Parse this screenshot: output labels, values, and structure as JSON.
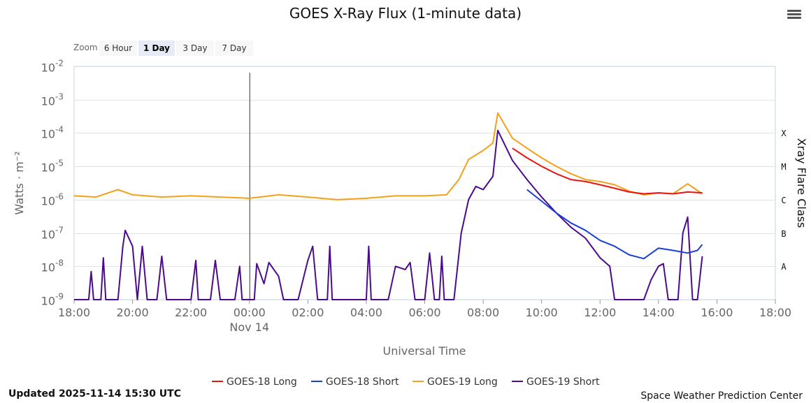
{
  "header": {
    "menu_icon": "hamburger-menu-icon"
  },
  "zoom": {
    "label": "Zoom",
    "options": [
      "6 Hour",
      "1 Day",
      "3 Day",
      "7 Day"
    ],
    "selected": "1 Day"
  },
  "footer": {
    "updated": "Updated 2025-11-14 15:30 UTC",
    "credit": "Space Weather Prediction Center"
  },
  "chart_data": {
    "type": "line",
    "title": "GOES X-Ray Flux (1-minute data)",
    "xlabel": "Universal Time",
    "ylabel": "Watts · m⁻²",
    "y2label": "Xray Flare Class",
    "yscale": "log",
    "ylim": [
      1e-09,
      0.01
    ],
    "xlim": [
      "2025-11-13 18:00",
      "2025-11-14 18:00"
    ],
    "grid": true,
    "legend_position": "bottom",
    "x_ticks": [
      "18:00",
      "20:00",
      "22:00",
      "00:00",
      "02:00",
      "04:00",
      "06:00",
      "08:00",
      "10:00",
      "12:00",
      "14:00",
      "16:00",
      "18:00"
    ],
    "date_label": {
      "at": "00:00",
      "text": "Nov 14"
    },
    "y_ticks": [
      {
        "base": "10",
        "exp": "-9"
      },
      {
        "base": "10",
        "exp": "-8"
      },
      {
        "base": "10",
        "exp": "-7"
      },
      {
        "base": "10",
        "exp": "-6"
      },
      {
        "base": "10",
        "exp": "-5"
      },
      {
        "base": "10",
        "exp": "-4"
      },
      {
        "base": "10",
        "exp": "-3"
      },
      {
        "base": "10",
        "exp": "-2"
      }
    ],
    "flare_classes": [
      {
        "label": "X",
        "at": 0.0001
      },
      {
        "label": "M",
        "at": 1e-05
      },
      {
        "label": "C",
        "at": 1e-06
      },
      {
        "label": "B",
        "at": 1e-07
      },
      {
        "label": "A",
        "at": 1e-08
      }
    ],
    "series": [
      {
        "name": "GOES-18 Long",
        "color": "#e8150f",
        "points": [
          [
            "2025-11-14 09:00",
            3.5e-05
          ],
          [
            "2025-11-14 09:30",
            1.8e-05
          ],
          [
            "2025-11-14 10:00",
            1e-05
          ],
          [
            "2025-11-14 10:30",
            6e-06
          ],
          [
            "2025-11-14 11:00",
            4e-06
          ],
          [
            "2025-11-14 11:30",
            3.5e-06
          ],
          [
            "2025-11-14 12:00",
            2.8e-06
          ],
          [
            "2025-11-14 12:30",
            2.2e-06
          ],
          [
            "2025-11-14 13:00",
            1.7e-06
          ],
          [
            "2025-11-14 13:30",
            1.5e-06
          ],
          [
            "2025-11-14 14:00",
            1.6e-06
          ],
          [
            "2025-11-14 14:30",
            1.5e-06
          ],
          [
            "2025-11-14 15:00",
            1.7e-06
          ],
          [
            "2025-11-14 15:30",
            1.6e-06
          ]
        ]
      },
      {
        "name": "GOES-18 Short",
        "color": "#1a3fd6",
        "points": [
          [
            "2025-11-14 09:30",
            2e-06
          ],
          [
            "2025-11-14 10:00",
            9e-07
          ],
          [
            "2025-11-14 10:30",
            4e-07
          ],
          [
            "2025-11-14 11:00",
            2e-07
          ],
          [
            "2025-11-14 11:30",
            1.2e-07
          ],
          [
            "2025-11-14 12:00",
            6e-08
          ],
          [
            "2025-11-14 12:30",
            4e-08
          ],
          [
            "2025-11-14 13:00",
            2.2e-08
          ],
          [
            "2025-11-14 13:30",
            1.7e-08
          ],
          [
            "2025-11-14 14:00",
            3.5e-08
          ],
          [
            "2025-11-14 14:30",
            3e-08
          ],
          [
            "2025-11-14 15:00",
            2.5e-08
          ],
          [
            "2025-11-14 15:20",
            3e-08
          ],
          [
            "2025-11-14 15:30",
            4.5e-08
          ]
        ]
      },
      {
        "name": "GOES-19 Long",
        "color": "#f5a01b",
        "points": [
          [
            "2025-11-13 18:00",
            1.3e-06
          ],
          [
            "2025-11-13 18:45",
            1.2e-06
          ],
          [
            "2025-11-13 19:30",
            2e-06
          ],
          [
            "2025-11-13 20:00",
            1.4e-06
          ],
          [
            "2025-11-13 21:00",
            1.2e-06
          ],
          [
            "2025-11-13 22:00",
            1.3e-06
          ],
          [
            "2025-11-13 23:00",
            1.2e-06
          ],
          [
            "2025-11-14 00:00",
            1.1e-06
          ],
          [
            "2025-11-14 01:00",
            1.4e-06
          ],
          [
            "2025-11-14 02:00",
            1.2e-06
          ],
          [
            "2025-11-14 03:00",
            1e-06
          ],
          [
            "2025-11-14 04:00",
            1.1e-06
          ],
          [
            "2025-11-14 05:00",
            1.3e-06
          ],
          [
            "2025-11-14 06:00",
            1.3e-06
          ],
          [
            "2025-11-14 06:45",
            1.4e-06
          ],
          [
            "2025-11-14 07:10",
            4e-06
          ],
          [
            "2025-11-14 07:30",
            1.6e-05
          ],
          [
            "2025-11-14 08:00",
            3e-05
          ],
          [
            "2025-11-14 08:20",
            5e-05
          ],
          [
            "2025-11-14 08:30",
            0.0004
          ],
          [
            "2025-11-14 09:00",
            7e-05
          ],
          [
            "2025-11-14 09:30",
            3.5e-05
          ],
          [
            "2025-11-14 10:00",
            1.8e-05
          ],
          [
            "2025-11-14 10:30",
            1e-05
          ],
          [
            "2025-11-14 11:00",
            6e-06
          ],
          [
            "2025-11-14 11:30",
            4e-06
          ],
          [
            "2025-11-14 12:00",
            3.5e-06
          ],
          [
            "2025-11-14 12:30",
            2.8e-06
          ],
          [
            "2025-11-14 13:00",
            1.8e-06
          ],
          [
            "2025-11-14 13:30",
            1.4e-06
          ],
          [
            "2025-11-14 14:00",
            1.6e-06
          ],
          [
            "2025-11-14 14:30",
            1.5e-06
          ],
          [
            "2025-11-14 15:00",
            3e-06
          ],
          [
            "2025-11-14 15:30",
            1.5e-06
          ]
        ]
      },
      {
        "name": "GOES-19 Short",
        "color": "#4b0b8c",
        "points": [
          [
            "2025-11-13 18:00",
            1e-09
          ],
          [
            "2025-11-13 18:30",
            1e-09
          ],
          [
            "2025-11-13 18:35",
            7e-09
          ],
          [
            "2025-11-13 18:40",
            1e-09
          ],
          [
            "2025-11-13 18:55",
            1e-09
          ],
          [
            "2025-11-13 19:00",
            1.8e-08
          ],
          [
            "2025-11-13 19:05",
            1e-09
          ],
          [
            "2025-11-13 19:30",
            1e-09
          ],
          [
            "2025-11-13 19:40",
            4e-08
          ],
          [
            "2025-11-13 19:45",
            1.2e-07
          ],
          [
            "2025-11-13 20:00",
            4e-08
          ],
          [
            "2025-11-13 20:10",
            1e-09
          ],
          [
            "2025-11-13 20:20",
            4e-08
          ],
          [
            "2025-11-13 20:30",
            1e-09
          ],
          [
            "2025-11-13 20:50",
            1e-09
          ],
          [
            "2025-11-13 21:00",
            2e-08
          ],
          [
            "2025-11-13 21:10",
            1e-09
          ],
          [
            "2025-11-13 22:00",
            1e-09
          ],
          [
            "2025-11-13 22:10",
            1.5e-08
          ],
          [
            "2025-11-13 22:15",
            1e-09
          ],
          [
            "2025-11-13 22:40",
            1e-09
          ],
          [
            "2025-11-13 22:50",
            1.5e-08
          ],
          [
            "2025-11-13 23:00",
            1e-09
          ],
          [
            "2025-11-13 23:30",
            1e-09
          ],
          [
            "2025-11-13 23:40",
            1e-08
          ],
          [
            "2025-11-13 23:45",
            1e-09
          ],
          [
            "2025-11-14 00:10",
            1e-09
          ],
          [
            "2025-11-14 00:15",
            1.2e-08
          ],
          [
            "2025-11-14 00:30",
            3e-09
          ],
          [
            "2025-11-14 00:40",
            1.3e-08
          ],
          [
            "2025-11-14 01:00",
            5e-09
          ],
          [
            "2025-11-14 01:10",
            1e-09
          ],
          [
            "2025-11-14 01:40",
            1e-09
          ],
          [
            "2025-11-14 02:00",
            1.5e-08
          ],
          [
            "2025-11-14 02:10",
            4e-08
          ],
          [
            "2025-11-14 02:20",
            1e-09
          ],
          [
            "2025-11-14 02:40",
            1e-09
          ],
          [
            "2025-11-14 02:45",
            4e-08
          ],
          [
            "2025-11-14 02:50",
            1e-09
          ],
          [
            "2025-11-14 04:00",
            1e-09
          ],
          [
            "2025-11-14 04:05",
            4e-08
          ],
          [
            "2025-11-14 04:10",
            1e-09
          ],
          [
            "2025-11-14 04:45",
            1e-09
          ],
          [
            "2025-11-14 05:00",
            1e-08
          ],
          [
            "2025-11-14 05:20",
            8e-09
          ],
          [
            "2025-11-14 05:30",
            1.3e-08
          ],
          [
            "2025-11-14 05:40",
            1e-09
          ],
          [
            "2025-11-14 06:00",
            1e-09
          ],
          [
            "2025-11-14 06:10",
            2.5e-08
          ],
          [
            "2025-11-14 06:20",
            1e-09
          ],
          [
            "2025-11-14 06:30",
            1e-09
          ],
          [
            "2025-11-14 06:35",
            2e-08
          ],
          [
            "2025-11-14 06:40",
            1e-09
          ],
          [
            "2025-11-14 07:00",
            1e-09
          ],
          [
            "2025-11-14 07:15",
            1e-07
          ],
          [
            "2025-11-14 07:30",
            1e-06
          ],
          [
            "2025-11-14 07:45",
            2.5e-06
          ],
          [
            "2025-11-14 08:00",
            2e-06
          ],
          [
            "2025-11-14 08:20",
            5e-06
          ],
          [
            "2025-11-14 08:30",
            0.00012
          ],
          [
            "2025-11-14 09:00",
            1.5e-05
          ],
          [
            "2025-11-14 09:30",
            4e-06
          ],
          [
            "2025-11-14 10:00",
            1.2e-06
          ],
          [
            "2025-11-14 10:30",
            4e-07
          ],
          [
            "2025-11-14 11:00",
            1.5e-07
          ],
          [
            "2025-11-14 11:30",
            7e-08
          ],
          [
            "2025-11-14 12:00",
            1.8e-08
          ],
          [
            "2025-11-14 12:20",
            1e-08
          ],
          [
            "2025-11-14 12:30",
            1e-09
          ],
          [
            "2025-11-14 13:30",
            1e-09
          ],
          [
            "2025-11-14 13:45",
            4e-09
          ],
          [
            "2025-11-14 14:00",
            1e-08
          ],
          [
            "2025-11-14 14:10",
            1.2e-08
          ],
          [
            "2025-11-14 14:20",
            1e-09
          ],
          [
            "2025-11-14 14:40",
            1e-09
          ],
          [
            "2025-11-14 14:50",
            1e-07
          ],
          [
            "2025-11-14 15:00",
            3e-07
          ],
          [
            "2025-11-14 15:10",
            1e-09
          ],
          [
            "2025-11-14 15:20",
            1e-09
          ],
          [
            "2025-11-14 15:30",
            2e-08
          ]
        ]
      }
    ]
  }
}
